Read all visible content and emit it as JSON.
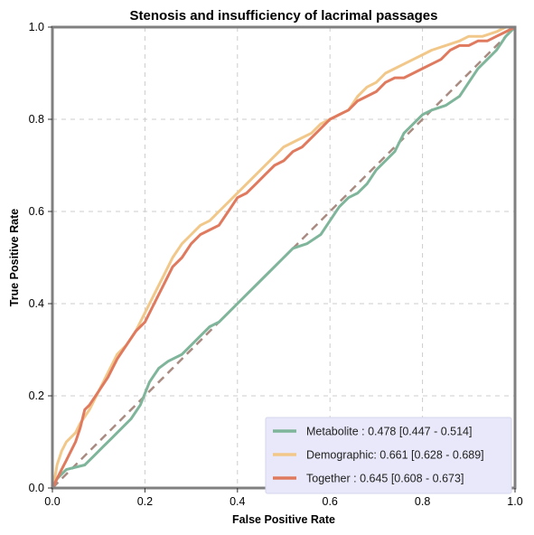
{
  "chart_data": {
    "type": "line",
    "title": "Stenosis and insufficiency of lacrimal passages",
    "xlabel": "False Positive Rate",
    "ylabel": "True Positive Rate",
    "xlim": [
      0,
      1
    ],
    "ylim": [
      0,
      1
    ],
    "xticks": [
      "0.0",
      "0.2",
      "0.4",
      "0.6",
      "0.8",
      "1.0"
    ],
    "yticks": [
      "0.0",
      "0.2",
      "0.4",
      "0.6",
      "0.8",
      "1.0"
    ],
    "grid": true,
    "legend_position": "bottom-right",
    "diagonal": {
      "color": "#a98b82",
      "style": "dashed"
    },
    "series": [
      {
        "name": "Metabolite",
        "label": "Metabolite     : 0.478 [0.447 - 0.514]",
        "color": "#7fb59a",
        "x": [
          0,
          0.01,
          0.02,
          0.03,
          0.05,
          0.07,
          0.09,
          0.11,
          0.13,
          0.15,
          0.17,
          0.19,
          0.21,
          0.23,
          0.25,
          0.28,
          0.3,
          0.32,
          0.34,
          0.36,
          0.38,
          0.4,
          0.42,
          0.45,
          0.48,
          0.5,
          0.52,
          0.55,
          0.58,
          0.6,
          0.62,
          0.64,
          0.66,
          0.68,
          0.7,
          0.72,
          0.74,
          0.76,
          0.78,
          0.8,
          0.82,
          0.85,
          0.88,
          0.9,
          0.92,
          0.94,
          0.96,
          0.98,
          1.0
        ],
        "y": [
          0,
          0.02,
          0.03,
          0.04,
          0.045,
          0.05,
          0.07,
          0.09,
          0.11,
          0.13,
          0.15,
          0.18,
          0.23,
          0.26,
          0.275,
          0.29,
          0.31,
          0.33,
          0.35,
          0.36,
          0.38,
          0.4,
          0.42,
          0.45,
          0.48,
          0.5,
          0.52,
          0.53,
          0.55,
          0.58,
          0.61,
          0.63,
          0.64,
          0.66,
          0.69,
          0.71,
          0.73,
          0.77,
          0.79,
          0.81,
          0.82,
          0.83,
          0.85,
          0.88,
          0.91,
          0.93,
          0.95,
          0.98,
          1.0
        ]
      },
      {
        "name": "Demographic",
        "label": "Demographic: 0.661 [0.628 - 0.689]",
        "color": "#f2c88a",
        "x": [
          0,
          0.005,
          0.01,
          0.02,
          0.03,
          0.04,
          0.05,
          0.06,
          0.08,
          0.1,
          0.12,
          0.14,
          0.16,
          0.18,
          0.2,
          0.22,
          0.24,
          0.26,
          0.28,
          0.3,
          0.32,
          0.34,
          0.36,
          0.38,
          0.4,
          0.42,
          0.44,
          0.46,
          0.48,
          0.5,
          0.52,
          0.54,
          0.56,
          0.58,
          0.6,
          0.62,
          0.64,
          0.66,
          0.68,
          0.7,
          0.72,
          0.74,
          0.76,
          0.78,
          0.8,
          0.82,
          0.85,
          0.88,
          0.9,
          0.93,
          0.96,
          0.98,
          1.0
        ],
        "y": [
          0,
          0.02,
          0.05,
          0.08,
          0.1,
          0.11,
          0.12,
          0.14,
          0.17,
          0.21,
          0.25,
          0.29,
          0.31,
          0.34,
          0.38,
          0.42,
          0.46,
          0.5,
          0.53,
          0.55,
          0.57,
          0.58,
          0.6,
          0.62,
          0.64,
          0.66,
          0.68,
          0.7,
          0.72,
          0.74,
          0.75,
          0.76,
          0.77,
          0.79,
          0.8,
          0.81,
          0.82,
          0.85,
          0.87,
          0.88,
          0.9,
          0.91,
          0.92,
          0.93,
          0.94,
          0.95,
          0.96,
          0.97,
          0.98,
          0.98,
          0.99,
          1.0,
          1.0
        ]
      },
      {
        "name": "Together",
        "label": "Together       : 0.645 [0.608 - 0.673]",
        "color": "#e07a5f",
        "x": [
          0,
          0.005,
          0.01,
          0.02,
          0.03,
          0.04,
          0.05,
          0.06,
          0.07,
          0.08,
          0.1,
          0.12,
          0.14,
          0.16,
          0.18,
          0.2,
          0.22,
          0.24,
          0.26,
          0.28,
          0.3,
          0.32,
          0.34,
          0.36,
          0.38,
          0.4,
          0.42,
          0.44,
          0.46,
          0.48,
          0.5,
          0.52,
          0.54,
          0.56,
          0.58,
          0.6,
          0.62,
          0.64,
          0.66,
          0.68,
          0.7,
          0.72,
          0.74,
          0.76,
          0.78,
          0.8,
          0.82,
          0.84,
          0.86,
          0.88,
          0.9,
          0.92,
          0.94,
          0.96,
          0.98,
          1.0
        ],
        "y": [
          0,
          0.01,
          0.02,
          0.04,
          0.06,
          0.08,
          0.1,
          0.13,
          0.17,
          0.18,
          0.21,
          0.24,
          0.28,
          0.31,
          0.34,
          0.36,
          0.4,
          0.44,
          0.48,
          0.5,
          0.53,
          0.55,
          0.56,
          0.57,
          0.6,
          0.63,
          0.64,
          0.66,
          0.68,
          0.7,
          0.71,
          0.73,
          0.74,
          0.76,
          0.78,
          0.8,
          0.81,
          0.82,
          0.84,
          0.85,
          0.86,
          0.88,
          0.89,
          0.89,
          0.9,
          0.91,
          0.92,
          0.93,
          0.95,
          0.96,
          0.96,
          0.97,
          0.97,
          0.98,
          0.99,
          1.0
        ]
      }
    ]
  },
  "legend_bg": "#e8e8fa",
  "frame_color": "#808080",
  "grid_color": "#cccccc"
}
